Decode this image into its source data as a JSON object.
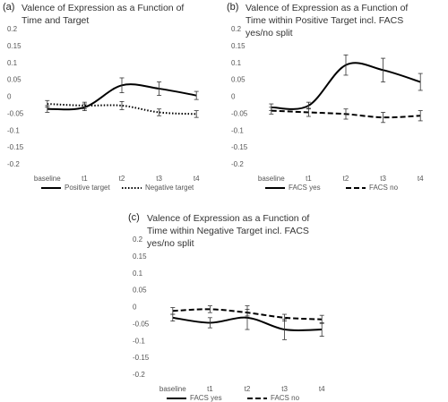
{
  "chart_data": [
    {
      "type": "line",
      "label": "(a)",
      "title": "Valence of Expression as a Function of Time and Target",
      "categories": [
        "baseline",
        "t1",
        "t2",
        "t3",
        "t4"
      ],
      "ylim": [
        -0.2,
        0.2
      ],
      "yticks": [
        0.2,
        0.15,
        0.1,
        0.05,
        0,
        -0.05,
        -0.1,
        -0.15,
        -0.2
      ],
      "grid": false,
      "legend": "bottom",
      "series": [
        {
          "name": "Positive target",
          "color": "#000000",
          "dash": "solid",
          "values": [
            -0.035,
            -0.03,
            0.035,
            0.025,
            0.005
          ],
          "errors": [
            0.01,
            0.01,
            0.022,
            0.02,
            0.012
          ]
        },
        {
          "name": "Negative target",
          "color": "#000000",
          "dash": "dotted",
          "values": [
            -0.02,
            -0.025,
            -0.025,
            -0.045,
            -0.05
          ],
          "errors": [
            0.01,
            0.01,
            0.012,
            0.01,
            0.01
          ]
        }
      ]
    },
    {
      "type": "line",
      "label": "(b)",
      "title": "Valence of Expression as a Function of Time within Positive Target incl. FACS yes/no split",
      "categories": [
        "baseline",
        "t1",
        "t2",
        "t3",
        "t4"
      ],
      "ylim": [
        -0.2,
        0.2
      ],
      "yticks": [
        0.2,
        0.15,
        0.1,
        0.05,
        0,
        -0.05,
        -0.1,
        -0.15,
        -0.2
      ],
      "grid": false,
      "legend": "bottom",
      "series": [
        {
          "name": "FACS yes",
          "color": "#000000",
          "dash": "solid",
          "values": [
            -0.03,
            -0.025,
            0.095,
            0.08,
            0.045
          ],
          "errors": [
            0.01,
            0.01,
            0.03,
            0.035,
            0.025
          ]
        },
        {
          "name": "FACS no",
          "color": "#000000",
          "dash": "dashed",
          "values": [
            -0.04,
            -0.045,
            -0.05,
            -0.06,
            -0.055
          ],
          "errors": [
            0.01,
            0.012,
            0.015,
            0.015,
            0.015
          ]
        }
      ]
    },
    {
      "type": "line",
      "label": "(c)",
      "title": "Valence of Expression as a Function of Time within Negative Target incl. FACS yes/no split",
      "categories": [
        "baseline",
        "t1",
        "t2",
        "t3",
        "t4"
      ],
      "ylim": [
        -0.2,
        0.2
      ],
      "yticks": [
        0.2,
        0.15,
        0.1,
        0.05,
        0,
        -0.05,
        -0.1,
        -0.15,
        -0.2
      ],
      "grid": false,
      "legend": "bottom",
      "series": [
        {
          "name": "FACS yes",
          "color": "#000000",
          "dash": "solid",
          "values": [
            -0.03,
            -0.045,
            -0.03,
            -0.065,
            -0.065
          ],
          "errors": [
            0.01,
            0.015,
            0.035,
            0.03,
            0.02
          ]
        },
        {
          "name": "FACS no",
          "color": "#000000",
          "dash": "dashed",
          "values": [
            -0.01,
            -0.005,
            -0.015,
            -0.03,
            -0.035
          ],
          "errors": [
            0.01,
            0.01,
            0.01,
            0.01,
            0.012
          ]
        }
      ]
    }
  ]
}
